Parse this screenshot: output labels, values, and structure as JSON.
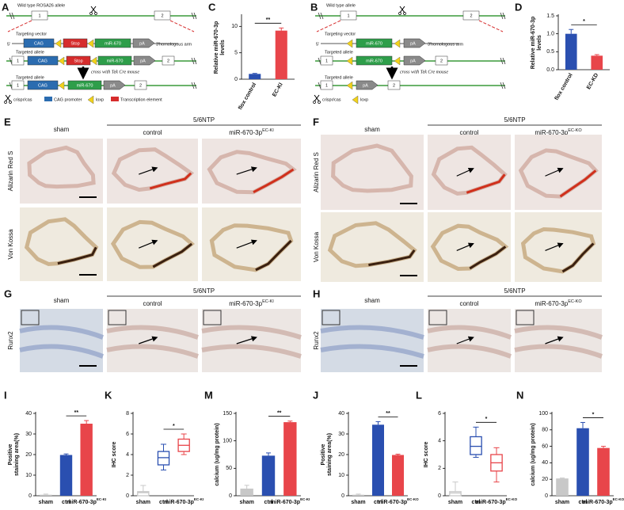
{
  "schematic_A": {
    "letter": "A",
    "wild_type": "Wild type ROSA26 allele",
    "exon1": "1",
    "exon2": "2",
    "targeting_vector": "Targeting vector",
    "five_prime": "5'",
    "cag": "CAG",
    "stop": "Stop",
    "mir": "miR-670",
    "pa": "pA",
    "arm": "3'homologous arm",
    "targeted_allele": "Targeted allele",
    "cross": "cross with Tek Cre mouse",
    "legend": [
      "crispr/cas",
      "CAG promoter",
      "loxp",
      "Transcription element"
    ]
  },
  "schematic_B": {
    "letter": "B",
    "wild_type": "Wild type allele",
    "exon1": "1",
    "exon2": "2",
    "targeting_vector": "Targeting vector",
    "five_prime": "5'",
    "mir": "miR-670",
    "pa": "pA",
    "arm": "3'homologous arm",
    "targeted_allele": "Targeted allele",
    "cross": "cross with Tek Cre mouse",
    "legend": [
      "crispr/cas",
      "loxp"
    ]
  },
  "histology_E": {
    "letter": "E",
    "group": "5/6NTP",
    "columns": [
      "sham",
      "control",
      "miR-670-3p"
    ],
    "superscript": "EC-KI",
    "rows": [
      "Alizarin Red S",
      "Von Kossa"
    ]
  },
  "histology_F": {
    "letter": "F",
    "group": "5/6NTP",
    "columns": [
      "sham",
      "control",
      "miR-670-3p"
    ],
    "superscript": "EC-KO",
    "rows": [
      "Alizarin Red S",
      "Von Kossa"
    ]
  },
  "histology_G": {
    "letter": "G",
    "group": "5/6NTP",
    "columns": [
      "sham",
      "control",
      "miR-670-3p"
    ],
    "superscript": "EC-KI",
    "rows": [
      "Runx2"
    ]
  },
  "histology_H": {
    "letter": "H",
    "group": "5/6NTP",
    "columns": [
      "sham",
      "control",
      "miR-670-3p"
    ],
    "superscript": "EC-KO",
    "rows": [
      "Runx2"
    ]
  },
  "chart_data": [
    {
      "type": "bar",
      "panel": "C",
      "ylabel": [
        "Relative miR-670-3p",
        "levels"
      ],
      "categories": [
        "flox control",
        "EC-KI"
      ],
      "superscripts": [
        null,
        null
      ],
      "values": [
        1.0,
        9.2
      ],
      "errors": [
        0.1,
        0.5
      ],
      "colors": [
        "#2a4fb0",
        "#e8454a"
      ],
      "ylim": [
        0,
        12
      ],
      "yticks": [
        0,
        5,
        10
      ],
      "significance": "**"
    },
    {
      "type": "bar",
      "panel": "D",
      "ylabel": [
        "Relative miR-670-3p",
        "levels"
      ],
      "categories": [
        "flox control",
        "EC-KD"
      ],
      "superscripts": [
        null,
        null
      ],
      "values": [
        1.0,
        0.39
      ],
      "errors": [
        0.12,
        0.03
      ],
      "colors": [
        "#2a4fb0",
        "#e8454a"
      ],
      "ylim": [
        0,
        1.5
      ],
      "yticks": [
        {
          "value": 0,
          "label": "0.0"
        },
        0.5,
        {
          "value": 1,
          "label": "1.0"
        },
        1.5
      ],
      "significance": "*"
    },
    {
      "type": "bar",
      "panel": "I",
      "ylabel": [
        "Positive",
        "staining area(%)"
      ],
      "categories": [
        "sham",
        "ctrl",
        "miR-670-3p"
      ],
      "superscripts": [
        null,
        null,
        "EC-KI"
      ],
      "values": [
        0.5,
        19.8,
        35
      ],
      "errors": [
        0.3,
        0.5,
        1.5
      ],
      "colors": [
        "#c8c8c8",
        "#2a4fb0",
        "#e8454a"
      ],
      "ylim": [
        0,
        40
      ],
      "yticks": [
        0,
        10,
        20,
        30,
        40
      ],
      "significance": "**"
    },
    {
      "type": "box",
      "panel": "K",
      "ylabel": [
        "IHC score"
      ],
      "categories": [
        "sham",
        "ctrl",
        "miR-670-3p"
      ],
      "superscripts": [
        null,
        null,
        "EC-KI"
      ],
      "boxes": [
        {
          "min": 0,
          "q1": 0,
          "median": 0.3,
          "q3": 0.4,
          "max": 1
        },
        {
          "min": 2.5,
          "q1": 3,
          "median": 3.7,
          "q3": 4.3,
          "max": 5
        },
        {
          "min": 4,
          "q1": 4.3,
          "median": 4.9,
          "q3": 5.5,
          "max": 6
        }
      ],
      "colors": [
        "#c8c8c8",
        "#2a4fb0",
        "#e8454a"
      ],
      "ylim": [
        0,
        8
      ],
      "yticks": [
        0,
        2,
        4,
        6,
        8
      ],
      "significance": "*"
    },
    {
      "type": "bar",
      "panel": "M",
      "ylabel": [
        "calcium (ug/mg protein)"
      ],
      "categories": [
        "sham",
        "ctrl",
        "miR-670-3p"
      ],
      "superscripts": [
        null,
        null,
        "EC-KI"
      ],
      "values": [
        13,
        73,
        134
      ],
      "errors": [
        6,
        5,
        2
      ],
      "colors": [
        "#c8c8c8",
        "#2a4fb0",
        "#e8454a"
      ],
      "ylim": [
        0,
        150
      ],
      "yticks": [
        0,
        50,
        100,
        150
      ],
      "significance": "**"
    },
    {
      "type": "bar",
      "panel": "J",
      "ylabel": [
        "Positive",
        "staining area(%)"
      ],
      "categories": [
        "sham",
        "ctrl",
        "miR-670-3p"
      ],
      "superscripts": [
        null,
        null,
        "EC-KO"
      ],
      "values": [
        0.5,
        34.5,
        19.8
      ],
      "errors": [
        0.3,
        1.5,
        0.4
      ],
      "colors": [
        "#c8c8c8",
        "#2a4fb0",
        "#e8454a"
      ],
      "ylim": [
        0,
        40
      ],
      "yticks": [
        0,
        10,
        20,
        30,
        40
      ],
      "significance": "**"
    },
    {
      "type": "box",
      "panel": "L",
      "ylabel": [
        "IHC score"
      ],
      "categories": [
        "sham",
        "ctrl",
        "miR-670-3p"
      ],
      "superscripts": [
        null,
        null,
        "EC-KO"
      ],
      "boxes": [
        {
          "min": 0,
          "q1": 0,
          "median": 0.2,
          "q3": 0.3,
          "max": 1
        },
        {
          "min": 2.8,
          "q1": 3,
          "median": 3.6,
          "q3": 4.3,
          "max": 5
        },
        {
          "min": 1,
          "q1": 1.8,
          "median": 2.4,
          "q3": 3,
          "max": 3.5
        }
      ],
      "colors": [
        "#c8c8c8",
        "#2a4fb0",
        "#e8454a"
      ],
      "ylim": [
        0,
        6
      ],
      "yticks": [
        0,
        2,
        4,
        6
      ],
      "significance": "*"
    },
    {
      "type": "bar",
      "panel": "N",
      "ylabel": [
        "calcium (ug/mg protein)"
      ],
      "categories": [
        "sham",
        "ctrl",
        "miR-670-3p"
      ],
      "superscripts": [
        null,
        null,
        "EC-KO"
      ],
      "values": [
        21,
        82,
        58
      ],
      "errors": [
        0.5,
        7,
        2
      ],
      "colors": [
        "#c8c8c8",
        "#2a4fb0",
        "#e8454a"
      ],
      "ylim": [
        0,
        100
      ],
      "yticks": [
        0,
        20,
        40,
        60,
        80,
        100
      ],
      "significance": "*"
    }
  ]
}
